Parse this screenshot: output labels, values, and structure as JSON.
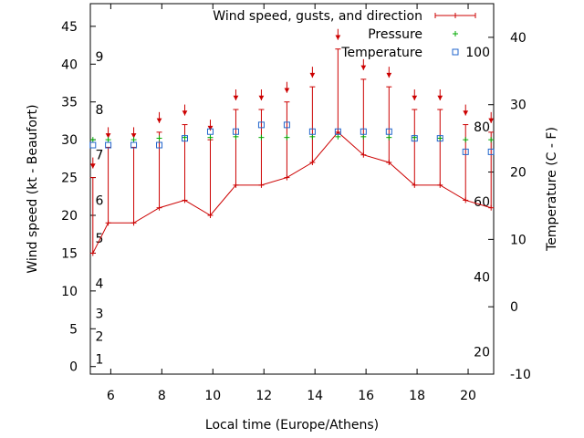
{
  "chart_data": {
    "type": "line",
    "xlabel": "Local time (Europe/Athens)",
    "ylabel_left": "Wind speed (kt - Beaufort)",
    "ylabel_right": "Temperature (C - F)",
    "xlim": [
      5.2,
      21
    ],
    "ylim_left": [
      -1,
      48
    ],
    "ylim_right": [
      -10,
      45
    ],
    "x_ticks": [
      6,
      8,
      10,
      12,
      14,
      16,
      18,
      20
    ],
    "y_ticks_left": [
      0,
      5,
      10,
      15,
      20,
      25,
      30,
      35,
      40,
      45
    ],
    "y_ticks_right": [
      -10,
      0,
      10,
      20,
      30,
      40
    ],
    "beaufort_labels": [
      {
        "label": "1",
        "y": 1
      },
      {
        "label": "2",
        "y": 4
      },
      {
        "label": "3",
        "y": 7
      },
      {
        "label": "4",
        "y": 11
      },
      {
        "label": "5",
        "y": 17
      },
      {
        "label": "6",
        "y": 22
      },
      {
        "label": "7",
        "y": 28
      },
      {
        "label": "8",
        "y": 34
      },
      {
        "label": "9",
        "y": 41
      }
    ],
    "fahrenheit_labels": [
      {
        "label": "20",
        "y_c": -6.7
      },
      {
        "label": "40",
        "y_c": 4.4
      },
      {
        "label": "60",
        "y_c": 15.6
      },
      {
        "label": "80",
        "y_c": 26.7
      },
      {
        "label": "100",
        "y_c": 37.8
      }
    ],
    "legend": {
      "wind": "Wind speed, gusts, and direction",
      "pressure": "Pressure",
      "temperature": "Temperature"
    },
    "colors": {
      "wind": "#cc0000",
      "pressure": "#00aa00",
      "temperature": "#2266cc"
    },
    "series": [
      {
        "name": "Wind speed",
        "x": [
          5.3,
          5.9,
          6.9,
          7.9,
          8.9,
          9.9,
          10.9,
          11.9,
          12.9,
          13.9,
          14.9,
          15.9,
          16.9,
          17.9,
          18.9,
          19.9,
          20.9
        ],
        "values": [
          15,
          19,
          19,
          21,
          22,
          20,
          24,
          24,
          25,
          27,
          31,
          28,
          27,
          24,
          24,
          22,
          21
        ],
        "gusts": [
          25,
          29,
          29,
          31,
          32,
          30,
          34,
          34,
          35,
          37,
          42,
          38,
          37,
          34,
          34,
          32,
          31
        ],
        "direction_deg": [
          315,
          315,
          315,
          315,
          315,
          315,
          315,
          315,
          315,
          315,
          315,
          315,
          315,
          315,
          315,
          315,
          315
        ]
      },
      {
        "name": "Pressure",
        "x": [
          5.3,
          5.9,
          6.9,
          7.9,
          8.9,
          9.9,
          10.9,
          11.9,
          12.9,
          13.9,
          14.9,
          15.9,
          16.9,
          17.9,
          18.9,
          19.9,
          20.9
        ],
        "values": [
          30,
          30,
          30,
          30.2,
          30.3,
          30.3,
          30.4,
          30.3,
          30.3,
          30.4,
          30.4,
          30.4,
          30.3,
          30.3,
          30.2,
          30,
          30
        ]
      },
      {
        "name": "Temperature",
        "x": [
          5.3,
          5.9,
          6.9,
          7.9,
          8.9,
          9.9,
          10.9,
          11.9,
          12.9,
          13.9,
          14.9,
          15.9,
          16.9,
          17.9,
          18.9,
          19.9,
          20.9
        ],
        "values": [
          24,
          24,
          24,
          24,
          25,
          26,
          26,
          27,
          27,
          26,
          26,
          26,
          26,
          25,
          25,
          23,
          23
        ]
      }
    ]
  }
}
